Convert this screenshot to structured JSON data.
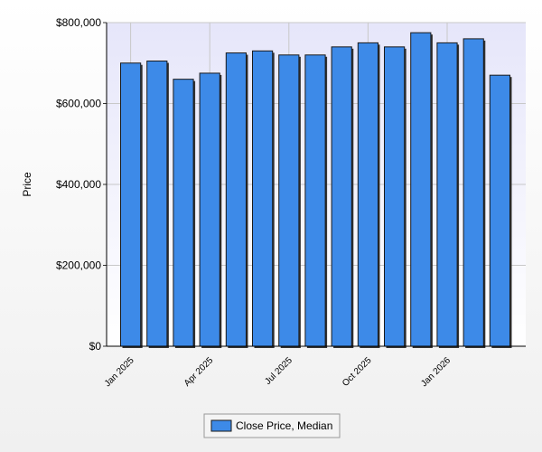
{
  "chart_data": {
    "type": "bar",
    "y_label": "Price",
    "categories": [
      "Jan 2025",
      null,
      null,
      "Apr 2025",
      null,
      null,
      "Jul 2025",
      null,
      null,
      "Oct 2025",
      null,
      null,
      "Jan 2026",
      null,
      null
    ],
    "series": [
      {
        "name": "Close Price, Median",
        "color": "#3d8ae8",
        "values": [
          700000,
          705000,
          660000,
          675000,
          725000,
          730000,
          720000,
          720000,
          740000,
          750000,
          740000,
          775000,
          750000,
          760000,
          670000
        ]
      }
    ],
    "ylim": [
      0,
      800000
    ],
    "yticks": [
      {
        "value": 0,
        "label": "$0"
      },
      {
        "value": 200000,
        "label": "$200,000"
      },
      {
        "value": 400000,
        "label": "$400,000"
      },
      {
        "value": 600000,
        "label": "$600,000"
      },
      {
        "value": 800000,
        "label": "$800,000"
      }
    ],
    "grid": true
  }
}
